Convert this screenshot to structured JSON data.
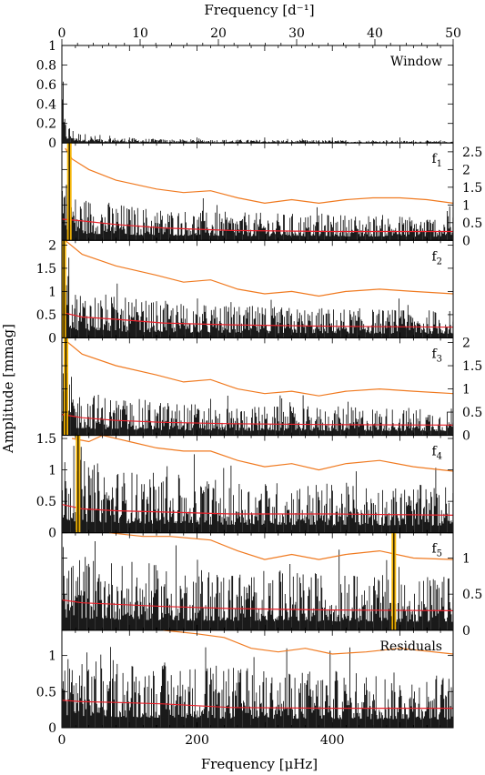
{
  "chart_data": {
    "type": "line",
    "top_axis": {
      "title": "Frequency [d⁻¹]",
      "range": [
        0,
        50
      ],
      "ticks": [
        "0",
        "10",
        "20",
        "30",
        "40",
        "50"
      ]
    },
    "bottom_axis": {
      "title": "Frequency [μHz]",
      "range": [
        0,
        578.7
      ],
      "ticks": [
        "0",
        "200",
        "400"
      ]
    },
    "ylabel": "Amplitude [mmag]",
    "colors": {
      "spectrum": "#000000",
      "noise_4sigma": "#f07a20",
      "noise_1sigma": "#e8202a",
      "highlight": "#f5b400"
    },
    "panels": [
      {
        "label": "Window",
        "ylim": [
          0,
          1.0
        ],
        "tick_side": "left",
        "ticks": [
          {
            "v": 0,
            "t": "0"
          },
          {
            "v": 0.2,
            "t": "0.2"
          },
          {
            "v": 0.4,
            "t": "0.4"
          },
          {
            "v": 0.6,
            "t": "0.6"
          },
          {
            "v": 0.8,
            "t": "0.8"
          },
          {
            "v": 1,
            "t": "1"
          }
        ],
        "spectrum_envelope": [
          [
            0,
            1.0
          ],
          [
            2,
            0.45
          ],
          [
            5,
            0.25
          ],
          [
            20,
            0.12
          ],
          [
            60,
            0.06
          ],
          [
            150,
            0.04
          ],
          [
            578.7,
            0.02
          ]
        ],
        "orange_curve": [],
        "red_curve": [],
        "highlight_freq": null
      },
      {
        "label": "f",
        "subscript": "1",
        "ylim": [
          0,
          2.75
        ],
        "tick_side": "right",
        "ticks": [
          {
            "v": 0,
            "t": "0"
          },
          {
            "v": 0.5,
            "t": "0.5"
          },
          {
            "v": 1,
            "t": "1"
          },
          {
            "v": 1.5,
            "t": "1.5"
          },
          {
            "v": 2,
            "t": "2"
          },
          {
            "v": 2.5,
            "t": "2.5"
          }
        ],
        "spectrum_envelope": [
          [
            0,
            2.5
          ],
          [
            20,
            1.3
          ],
          [
            100,
            1.0
          ],
          [
            250,
            0.8
          ],
          [
            578.7,
            0.7
          ]
        ],
        "orange_curve": [
          [
            5,
            2.6
          ],
          [
            15,
            2.3
          ],
          [
            40,
            2.0
          ],
          [
            80,
            1.7
          ],
          [
            140,
            1.45
          ],
          [
            180,
            1.35
          ],
          [
            220,
            1.4
          ],
          [
            260,
            1.2
          ],
          [
            300,
            1.05
          ],
          [
            340,
            1.15
          ],
          [
            380,
            1.05
          ],
          [
            420,
            1.15
          ],
          [
            460,
            1.2
          ],
          [
            500,
            1.2
          ],
          [
            540,
            1.15
          ],
          [
            578.7,
            1.05
          ]
        ],
        "red_curve": [
          [
            0,
            0.6
          ],
          [
            30,
            0.55
          ],
          [
            80,
            0.45
          ],
          [
            150,
            0.35
          ],
          [
            250,
            0.28
          ],
          [
            400,
            0.25
          ],
          [
            578.7,
            0.25
          ]
        ],
        "highlight_freq": 11.0
      },
      {
        "label": "f",
        "subscript": "2",
        "ylim": [
          0,
          2.1
        ],
        "tick_side": "left",
        "ticks": [
          {
            "v": 0,
            "t": "0"
          },
          {
            "v": 0.5,
            "t": "0.5"
          },
          {
            "v": 1,
            "t": "1"
          },
          {
            "v": 1.5,
            "t": "1.5"
          },
          {
            "v": 2,
            "t": "2"
          }
        ],
        "spectrum_envelope": [
          [
            0,
            2.0
          ],
          [
            20,
            1.1
          ],
          [
            100,
            0.85
          ],
          [
            250,
            0.7
          ],
          [
            578.7,
            0.6
          ]
        ],
        "orange_curve": [
          [
            5,
            2.1
          ],
          [
            30,
            1.8
          ],
          [
            80,
            1.55
          ],
          [
            140,
            1.35
          ],
          [
            180,
            1.2
          ],
          [
            220,
            1.25
          ],
          [
            260,
            1.05
          ],
          [
            300,
            0.95
          ],
          [
            340,
            1.0
          ],
          [
            380,
            0.9
          ],
          [
            420,
            1.0
          ],
          [
            470,
            1.05
          ],
          [
            520,
            1.0
          ],
          [
            578.7,
            0.95
          ]
        ],
        "red_curve": [
          [
            0,
            0.55
          ],
          [
            30,
            0.45
          ],
          [
            80,
            0.4
          ],
          [
            150,
            0.32
          ],
          [
            250,
            0.28
          ],
          [
            400,
            0.25
          ],
          [
            578.7,
            0.23
          ]
        ],
        "highlight_freq": 3.0
      },
      {
        "label": "f",
        "subscript": "3",
        "ylim": [
          0,
          2.1
        ],
        "tick_side": "right",
        "ticks": [
          {
            "v": 0,
            "t": "0"
          },
          {
            "v": 0.5,
            "t": "0.5"
          },
          {
            "v": 1,
            "t": "1"
          },
          {
            "v": 1.5,
            "t": "1.5"
          },
          {
            "v": 2,
            "t": "2"
          }
        ],
        "spectrum_envelope": [
          [
            0,
            1.9
          ],
          [
            20,
            1.0
          ],
          [
            100,
            0.8
          ],
          [
            250,
            0.65
          ],
          [
            578.7,
            0.6
          ]
        ],
        "orange_curve": [
          [
            5,
            2.05
          ],
          [
            30,
            1.75
          ],
          [
            80,
            1.5
          ],
          [
            140,
            1.3
          ],
          [
            180,
            1.15
          ],
          [
            220,
            1.2
          ],
          [
            260,
            1.0
          ],
          [
            300,
            0.9
          ],
          [
            340,
            0.95
          ],
          [
            380,
            0.85
          ],
          [
            420,
            0.95
          ],
          [
            470,
            1.0
          ],
          [
            520,
            0.95
          ],
          [
            578.7,
            0.9
          ]
        ],
        "red_curve": [
          [
            0,
            0.45
          ],
          [
            30,
            0.38
          ],
          [
            80,
            0.32
          ],
          [
            150,
            0.28
          ],
          [
            250,
            0.25
          ],
          [
            400,
            0.23
          ],
          [
            578.7,
            0.22
          ]
        ],
        "highlight_freq": 6.0
      },
      {
        "label": "f",
        "subscript": "4",
        "ylim": [
          0,
          1.55
        ],
        "tick_side": "left",
        "ticks": [
          {
            "v": 0,
            "t": "0"
          },
          {
            "v": 0.5,
            "t": "0.5"
          },
          {
            "v": 1,
            "t": "1"
          },
          {
            "v": 1.5,
            "t": "1.5"
          }
        ],
        "spectrum_envelope": [
          [
            0,
            1.4
          ],
          [
            20,
            1.2
          ],
          [
            100,
            1.0
          ],
          [
            250,
            0.85
          ],
          [
            578.7,
            0.75
          ]
        ],
        "orange_curve": [
          [
            15,
            1.5
          ],
          [
            40,
            1.45
          ],
          [
            60,
            1.55
          ],
          [
            100,
            1.45
          ],
          [
            140,
            1.35
          ],
          [
            180,
            1.3
          ],
          [
            220,
            1.3
          ],
          [
            260,
            1.15
          ],
          [
            300,
            1.05
          ],
          [
            340,
            1.1
          ],
          [
            380,
            1.0
          ],
          [
            420,
            1.1
          ],
          [
            470,
            1.15
          ],
          [
            520,
            1.05
          ],
          [
            578.7,
            0.98
          ]
        ],
        "red_curve": [
          [
            0,
            0.45
          ],
          [
            30,
            0.38
          ],
          [
            80,
            0.35
          ],
          [
            150,
            0.33
          ],
          [
            250,
            0.3
          ],
          [
            400,
            0.3
          ],
          [
            578.7,
            0.28
          ]
        ],
        "highlight_freq": 24.0
      },
      {
        "label": "f",
        "subscript": "5",
        "ylim": [
          0,
          1.35
        ],
        "tick_side": "right",
        "ticks": [
          {
            "v": 0,
            "t": "0"
          },
          {
            "v": 0.5,
            "t": "0.5"
          },
          {
            "v": 1,
            "t": "1"
          }
        ],
        "spectrum_envelope": [
          [
            0,
            1.2
          ],
          [
            20,
            1.1
          ],
          [
            100,
            0.95
          ],
          [
            250,
            0.85
          ],
          [
            578.7,
            0.75
          ]
        ],
        "orange_curve": [
          [
            70,
            1.35
          ],
          [
            120,
            1.3
          ],
          [
            160,
            1.3
          ],
          [
            220,
            1.25
          ],
          [
            260,
            1.1
          ],
          [
            300,
            0.98
          ],
          [
            340,
            1.05
          ],
          [
            380,
            0.98
          ],
          [
            420,
            1.05
          ],
          [
            470,
            1.1
          ],
          [
            520,
            1.0
          ],
          [
            578.7,
            0.98
          ]
        ],
        "red_curve": [
          [
            0,
            0.42
          ],
          [
            30,
            0.38
          ],
          [
            80,
            0.36
          ],
          [
            150,
            0.33
          ],
          [
            250,
            0.3
          ],
          [
            400,
            0.28
          ],
          [
            578.7,
            0.27
          ]
        ],
        "highlight_freq": 491.0
      },
      {
        "label": "Residuals",
        "ylim": [
          0,
          1.35
        ],
        "tick_side": "left",
        "ticks": [
          {
            "v": 0,
            "t": "0"
          },
          {
            "v": 0.5,
            "t": "0.5"
          },
          {
            "v": 1,
            "t": "1"
          }
        ],
        "spectrum_envelope": [
          [
            0,
            1.2
          ],
          [
            20,
            1.1
          ],
          [
            100,
            0.95
          ],
          [
            250,
            0.85
          ],
          [
            578.7,
            0.75
          ]
        ],
        "orange_curve": [
          [
            150,
            1.35
          ],
          [
            200,
            1.3
          ],
          [
            240,
            1.25
          ],
          [
            280,
            1.1
          ],
          [
            320,
            1.05
          ],
          [
            360,
            1.1
          ],
          [
            400,
            1.02
          ],
          [
            450,
            1.05
          ],
          [
            500,
            1.1
          ],
          [
            578.7,
            1.02
          ]
        ],
        "red_curve": [
          [
            0,
            0.38
          ],
          [
            30,
            0.36
          ],
          [
            80,
            0.35
          ],
          [
            150,
            0.33
          ],
          [
            250,
            0.28
          ],
          [
            400,
            0.27
          ],
          [
            578.7,
            0.27
          ]
        ],
        "highlight_freq": null
      }
    ]
  }
}
